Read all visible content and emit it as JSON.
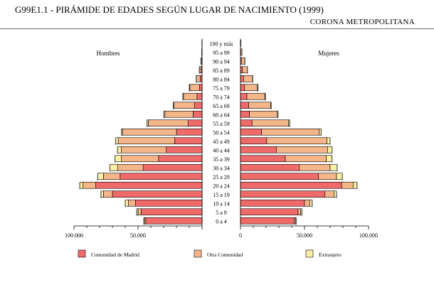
{
  "title": "G99E1.1  - PIRÁMIDE DE EDADES SEGÚN LUGAR DE NACIMIENTO (1999)",
  "region": "CORONA METROPOLITANA",
  "colors": {
    "madrid": "#f16a6a",
    "otra": "#f4b688",
    "extranjero": "#fbf0a4",
    "outline": "#000000"
  },
  "chart_data": {
    "type": "bar",
    "orientation": "horizontal-pyramid",
    "left_label": "Hombres",
    "right_label": "Mujeres",
    "categories": [
      "0 a 4",
      "5 a 9",
      "10 a 14",
      "15 a 19",
      "20 a 24",
      "25 a 29",
      "30 a 34",
      "35 a 39",
      "40 a 44",
      "45 a 49",
      "50 a 54",
      "55 a 59",
      "60 a 64",
      "65 a 69",
      "70 a 74",
      "75 a 79",
      "80 a 84",
      "85 a 89",
      "90 a 94",
      "95 a 99",
      "100 y más"
    ],
    "xlim": [
      0,
      100000
    ],
    "x_ticks": [
      0,
      50000,
      100000
    ],
    "x_tick_labels_left": [
      "",
      "50.000",
      "100.000"
    ],
    "x_tick_labels_right": [
      "0",
      "50.000",
      "100.000"
    ],
    "series": [
      {
        "name": "Comunidad de Madrid",
        "color": "#f16a6a",
        "hombres": [
          44000,
          47500,
          52000,
          70000,
          83000,
          64000,
          46000,
          34000,
          28000,
          21500,
          20000,
          11000,
          7000,
          6000,
          4000,
          2000,
          1500,
          700,
          250,
          80,
          0
        ],
        "mujeres": [
          42000,
          45000,
          50000,
          66000,
          79000,
          61000,
          46000,
          35000,
          28000,
          20500,
          16500,
          9000,
          7000,
          6500,
          5000,
          3200,
          2400,
          1400,
          700,
          200,
          50
        ]
      },
      {
        "name": "Otra Comunidad",
        "color": "#f4b688",
        "hombres": [
          1000,
          2500,
          5500,
          7000,
          10000,
          13000,
          20000,
          29000,
          35000,
          44000,
          42000,
          31000,
          22000,
          16000,
          10500,
          7500,
          3000,
          1300,
          600,
          150,
          40
        ],
        "mujeres": [
          1000,
          2000,
          4000,
          7000,
          9000,
          14000,
          24000,
          32000,
          40000,
          47000,
          45000,
          28500,
          21500,
          17000,
          14000,
          10000,
          7000,
          4000,
          2700,
          900,
          220
        ]
      },
      {
        "name": "Extranjero",
        "color": "#fbf0a4",
        "hombres": [
          500,
          1000,
          2500,
          2000,
          2500,
          4500,
          6000,
          5000,
          3000,
          2000,
          1000,
          1000,
          800,
          500,
          500,
          500,
          100,
          100,
          50,
          10,
          5
        ],
        "mujeres": [
          500,
          1000,
          2000,
          2000,
          3000,
          4500,
          5500,
          4500,
          3500,
          2500,
          1500,
          1000,
          800,
          500,
          500,
          500,
          200,
          100,
          100,
          20,
          10
        ]
      }
    ]
  }
}
